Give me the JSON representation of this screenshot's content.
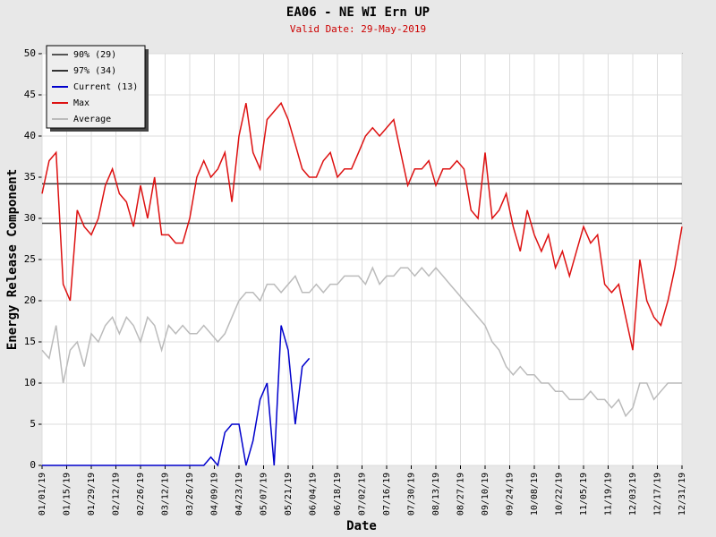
{
  "chart_data": {
    "type": "line",
    "title": "EA06 - NE WI Ern UP",
    "subtitle": "Valid Date: 29-May-2019",
    "x_label": "Date",
    "y_label": "Energy Release Component",
    "grid": true,
    "legend": "top-left",
    "xlim": [
      1,
      365
    ],
    "ylim": [
      0,
      50
    ],
    "yticks": [
      0,
      5,
      10,
      15,
      20,
      25,
      30,
      35,
      40,
      45,
      50
    ],
    "xticks": [
      {
        "value": 1,
        "label": "01/01/19"
      },
      {
        "value": 15,
        "label": "01/15/19"
      },
      {
        "value": 29,
        "label": "01/29/19"
      },
      {
        "value": 43,
        "label": "02/12/19"
      },
      {
        "value": 57,
        "label": "02/26/19"
      },
      {
        "value": 71,
        "label": "03/12/19"
      },
      {
        "value": 85,
        "label": "03/26/19"
      },
      {
        "value": 99,
        "label": "04/09/19"
      },
      {
        "value": 113,
        "label": "04/23/19"
      },
      {
        "value": 127,
        "label": "05/07/19"
      },
      {
        "value": 141,
        "label": "05/21/19"
      },
      {
        "value": 155,
        "label": "06/04/19"
      },
      {
        "value": 169,
        "label": "06/18/19"
      },
      {
        "value": 183,
        "label": "07/02/19"
      },
      {
        "value": 197,
        "label": "07/16/19"
      },
      {
        "value": 211,
        "label": "07/30/19"
      },
      {
        "value": 225,
        "label": "08/13/19"
      },
      {
        "value": 239,
        "label": "08/27/19"
      },
      {
        "value": 253,
        "label": "09/10/19"
      },
      {
        "value": 267,
        "label": "09/24/19"
      },
      {
        "value": 281,
        "label": "10/08/19"
      },
      {
        "value": 295,
        "label": "10/22/19"
      },
      {
        "value": 309,
        "label": "11/05/19"
      },
      {
        "value": 323,
        "label": "11/19/19"
      },
      {
        "value": 337,
        "label": "12/03/19"
      },
      {
        "value": 351,
        "label": "12/17/19"
      },
      {
        "value": 365,
        "label": "12/31/19"
      }
    ],
    "reference_lines": [
      {
        "name": "90% (29)",
        "value": 29.4,
        "color": "#555555"
      },
      {
        "name": "97% (34)",
        "value": 34.2,
        "color": "#333333"
      }
    ],
    "x": [
      1,
      5,
      9,
      13,
      17,
      21,
      25,
      29,
      33,
      37,
      41,
      45,
      49,
      53,
      57,
      61,
      65,
      69,
      73,
      77,
      81,
      85,
      89,
      93,
      97,
      101,
      105,
      109,
      113,
      117,
      121,
      125,
      129,
      133,
      137,
      141,
      145,
      149,
      153,
      157,
      161,
      165,
      169,
      173,
      177,
      181,
      185,
      189,
      193,
      197,
      201,
      205,
      209,
      213,
      217,
      221,
      225,
      229,
      233,
      237,
      241,
      245,
      249,
      253,
      257,
      261,
      265,
      269,
      273,
      277,
      281,
      285,
      289,
      293,
      297,
      301,
      305,
      309,
      313,
      317,
      321,
      325,
      329,
      333,
      337,
      341,
      345,
      349,
      353,
      357,
      361,
      365
    ],
    "series": [
      {
        "name": "Current (13)",
        "color": "#0000cc",
        "values": [
          0,
          0,
          0,
          0,
          0,
          0,
          0,
          0,
          0,
          0,
          0,
          0,
          0,
          0,
          0,
          0,
          0,
          0,
          0,
          0,
          0,
          0,
          0,
          0,
          1,
          0,
          4,
          5,
          5,
          0,
          3,
          8,
          10,
          0,
          17,
          14,
          5,
          12,
          13,
          null,
          null,
          null,
          null,
          null,
          null,
          null,
          null,
          null,
          null,
          null,
          null,
          null,
          null,
          null,
          null,
          null,
          null,
          null,
          null,
          null,
          null,
          null,
          null,
          null,
          null,
          null,
          null,
          null,
          null,
          null,
          null,
          null,
          null,
          null,
          null,
          null,
          null,
          null,
          null,
          null,
          null,
          null,
          null,
          null,
          null,
          null,
          null,
          null,
          null,
          null,
          null,
          null
        ]
      },
      {
        "name": "Max",
        "color": "#dd1111",
        "values": [
          33,
          37,
          38,
          22,
          20,
          31,
          29,
          28,
          30,
          34,
          36,
          33,
          32,
          29,
          34,
          30,
          35,
          28,
          28,
          27,
          27,
          30,
          35,
          37,
          35,
          36,
          38,
          32,
          40,
          44,
          38,
          36,
          42,
          43,
          44,
          42,
          39,
          36,
          35,
          35,
          37,
          38,
          35,
          36,
          36,
          38,
          40,
          41,
          40,
          41,
          42,
          38,
          34,
          36,
          36,
          37,
          34,
          36,
          36,
          37,
          36,
          31,
          30,
          38,
          30,
          31,
          33,
          29,
          26,
          31,
          28,
          26,
          28,
          24,
          26,
          23,
          26,
          29,
          27,
          28,
          22,
          21,
          22,
          18,
          14,
          25,
          20,
          18,
          17,
          20,
          24,
          29
        ]
      },
      {
        "name": "Average",
        "color": "#bbbbbb",
        "values": [
          14,
          13,
          17,
          10,
          14,
          15,
          12,
          16,
          15,
          17,
          18,
          16,
          18,
          17,
          15,
          18,
          17,
          14,
          17,
          16,
          17,
          16,
          16,
          17,
          16,
          15,
          16,
          18,
          20,
          21,
          21,
          20,
          22,
          22,
          21,
          22,
          23,
          21,
          21,
          22,
          21,
          22,
          22,
          23,
          23,
          23,
          22,
          24,
          22,
          23,
          23,
          24,
          24,
          23,
          24,
          23,
          24,
          23,
          22,
          21,
          20,
          19,
          18,
          17,
          15,
          14,
          12,
          11,
          12,
          11,
          11,
          10,
          10,
          9,
          9,
          8,
          8,
          8,
          9,
          8,
          8,
          7,
          8,
          6,
          7,
          10,
          10,
          8,
          9,
          10,
          10,
          10
        ]
      }
    ]
  }
}
